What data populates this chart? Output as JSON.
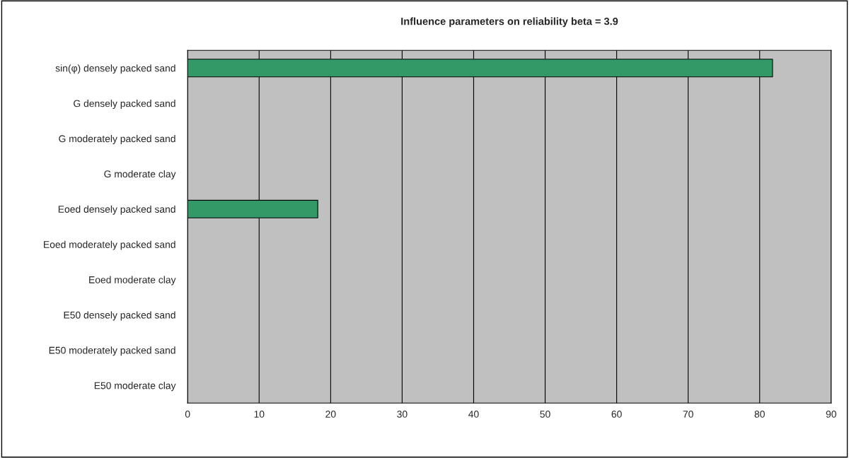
{
  "chart_data": {
    "type": "bar",
    "orientation": "horizontal",
    "title": "Influence parameters on reliability beta = 3.9",
    "categories": [
      "sin(φ) densely packed sand",
      "G densely packed sand",
      "G moderately packed sand",
      "G moderate clay",
      "Eoed densely packed sand",
      "Eoed moderately packed sand",
      "Eoed moderate clay",
      "E50 densely packed sand",
      "E50 moderately packed sand",
      "E50 moderate clay"
    ],
    "values": [
      81.8,
      0,
      0,
      0,
      18.2,
      0,
      0,
      0,
      0,
      0
    ],
    "color": "#339966",
    "xlim": [
      0,
      90
    ],
    "xticks": [
      0,
      10,
      20,
      30,
      40,
      50,
      60,
      70,
      80,
      90
    ],
    "grid": "x",
    "legend": false
  }
}
